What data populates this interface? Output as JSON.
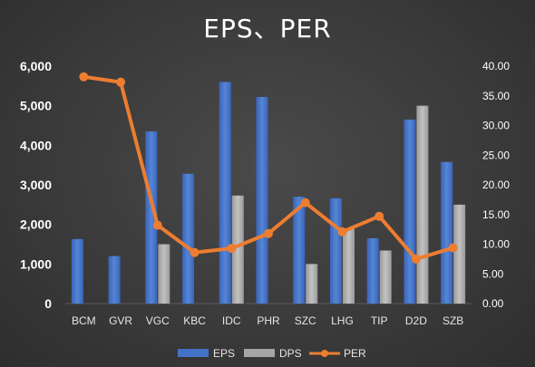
{
  "colors": {
    "eps": "#4472c4",
    "dps": "#a5a5a5",
    "per": "#ed7d31",
    "grid": "#5a5a5a"
  },
  "chart_data": {
    "type": "bar",
    "title": "EPS、PER",
    "categories": [
      "BCM",
      "GVR",
      "VGC",
      "KBC",
      "IDC",
      "PHR",
      "SZC",
      "LHG",
      "TIP",
      "D2D",
      "SZB"
    ],
    "series": [
      {
        "name": "EPS",
        "type": "bar",
        "axis": "left",
        "values": [
          1630,
          1200,
          4350,
          3280,
          5600,
          5220,
          2700,
          2660,
          1650,
          4650,
          3580
        ]
      },
      {
        "name": "DPS",
        "type": "bar",
        "axis": "left",
        "values": [
          0,
          0,
          1500,
          0,
          2730,
          0,
          1000,
          1900,
          1340,
          5000,
          2500
        ]
      },
      {
        "name": "PER",
        "type": "line",
        "axis": "right",
        "values": [
          38.2,
          37.3,
          13.2,
          8.6,
          9.3,
          11.8,
          17.0,
          12.1,
          14.7,
          7.5,
          9.4
        ]
      }
    ],
    "ylim": [
      0,
      6000
    ],
    "y2lim": [
      0,
      40
    ],
    "y_ticks": [
      "0",
      "1,000",
      "2,000",
      "3,000",
      "4,000",
      "5,000",
      "6,000"
    ],
    "y2_ticks": [
      "0.00",
      "5.00",
      "10.00",
      "15.00",
      "20.00",
      "25.00",
      "30.00",
      "35.00",
      "40.00"
    ],
    "legend": [
      "EPS",
      "DPS",
      "PER"
    ],
    "legend_position": "bottom",
    "grid": false
  }
}
